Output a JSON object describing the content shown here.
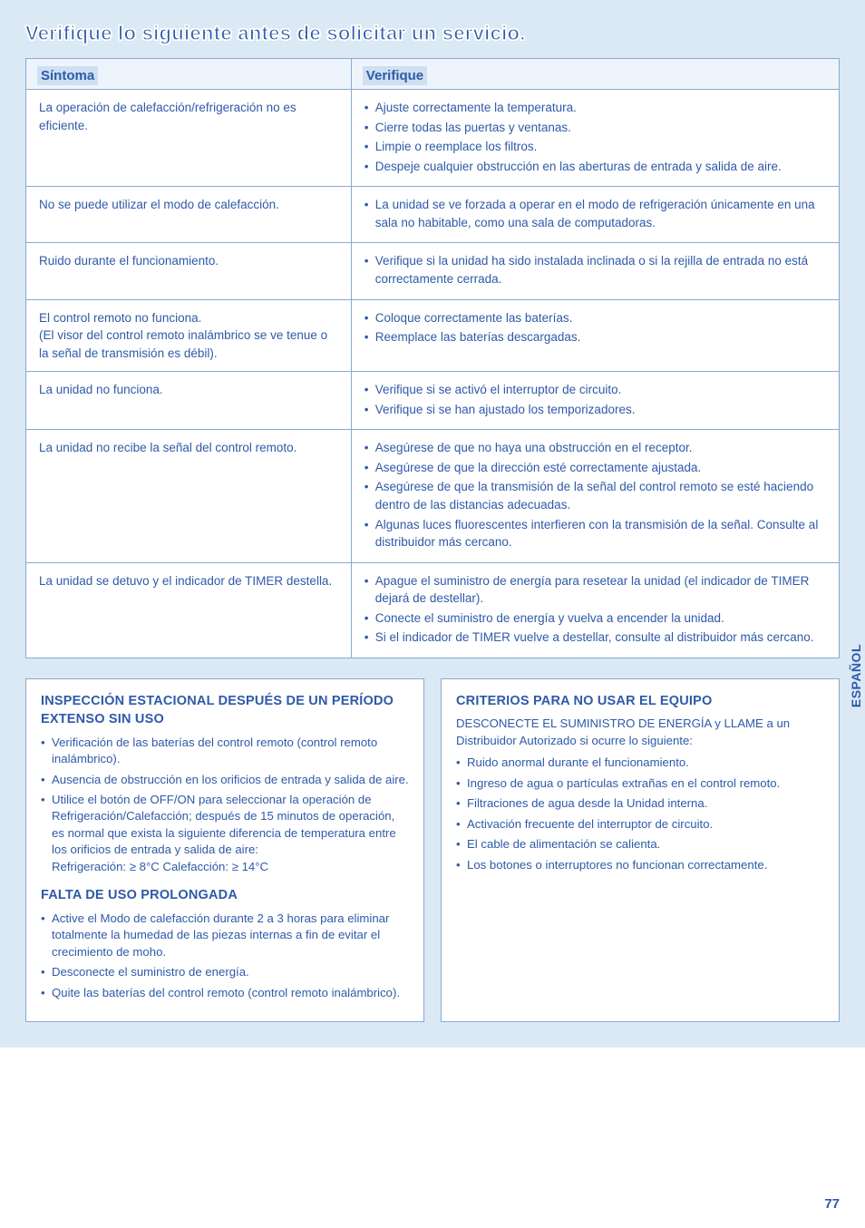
{
  "colors": {
    "page_bg": "#dbe9f4",
    "card_bg": "#ffffff",
    "border": "#8aa9d0",
    "text": "#2e5aa8",
    "header_highlight": "#cfe0f2"
  },
  "typography": {
    "title_fontsize": 22,
    "header_fontsize": 15,
    "body_fontsize": 13.5,
    "infobox_heading_fontsize": 14.5,
    "infobox_body_fontsize": 13.2,
    "pagenum_fontsize": 15
  },
  "title": "Verifique lo siguiente antes de solicitar un servicio.",
  "table": {
    "col_widths": [
      "40%",
      "60%"
    ],
    "headers": [
      "Síntoma",
      "Verifique"
    ],
    "rows": [
      {
        "symptom": "La operación de calefacción/refrigeración no es eficiente.",
        "checks": [
          "Ajuste correctamente la temperatura.",
          "Cierre todas las puertas y ventanas.",
          "Limpie o reemplace los filtros.",
          "Despeje cualquier obstrucción en las aberturas de entrada y salida de aire."
        ]
      },
      {
        "symptom": "No se puede utilizar el modo de calefacción.",
        "checks": [
          "La unidad se ve forzada a operar en el modo de refrigeración únicamente en una sala no habitable, como una sala de computadoras."
        ]
      },
      {
        "symptom": "Ruido durante el funcionamiento.",
        "checks": [
          "Verifique si la unidad ha sido instalada inclinada o si la rejilla de entrada no está correctamente cerrada."
        ]
      },
      {
        "symptom": "El control remoto no funciona.\n(El visor del control remoto inalámbrico se ve tenue o\nla señal de transmisión es débil).",
        "checks": [
          "Coloque correctamente las baterías.",
          "Reemplace las baterías descargadas."
        ]
      },
      {
        "symptom": "La unidad no funciona.",
        "checks": [
          "Verifique si se activó el interruptor de circuito.",
          "Verifique si se han ajustado los temporizadores."
        ]
      },
      {
        "symptom": "La unidad no recibe la señal del control remoto.",
        "checks": [
          "Asegúrese de que no haya una obstrucción en el receptor.",
          "Asegúrese de que la dirección esté correctamente ajustada.",
          "Asegúrese de que la transmisión de la señal del control remoto se esté haciendo dentro de las distancias adecuadas.",
          "Algunas luces fluorescentes interfieren con la transmisión de la señal. Consulte al distribuidor más cercano."
        ]
      },
      {
        "symptom": "La unidad se detuvo y el indicador de TIMER destella.",
        "checks": [
          "Apague el suministro de energía para resetear la unidad (el indicador de TIMER dejará de destellar).",
          "Conecte el suministro de energía y vuelva a encender la unidad.",
          "Si el indicador de TIMER vuelve a destellar, consulte al distribuidor más cercano."
        ]
      }
    ]
  },
  "left_box": {
    "section1": {
      "heading": "INSPECCIÓN ESTACIONAL DESPUÉS DE UN PERÍODO EXTENSO SIN USO",
      "items": [
        "Verificación de las baterías del control remoto (control remoto inalámbrico).",
        "Ausencia de obstrucción en los orificios de entrada y salida de aire.",
        "Utilice el botón de OFF/ON para seleccionar la operación de Refrigeración/Calefacción; después de 15 minutos de operación, es normal que exista la siguiente diferencia de temperatura entre los orificios de entrada y salida de aire:\nRefrigeración: ≥ 8°C        Calefacción: ≥ 14°C"
      ]
    },
    "section2": {
      "heading": "FALTA DE USO PROLONGADA",
      "items": [
        "Active el Modo de calefacción durante 2 a 3 horas para eliminar totalmente la humedad de las piezas internas a fin de evitar el crecimiento de moho.",
        "Desconecte el suministro de energía.",
        "Quite las baterías del control remoto (control remoto inalámbrico)."
      ]
    }
  },
  "right_box": {
    "heading": "CRITERIOS PARA NO USAR EL EQUIPO",
    "intro": "DESCONECTE EL SUMINISTRO DE ENERGÍA y LLAME a un Distribuidor Autorizado si ocurre lo siguiente:",
    "items": [
      "Ruido anormal durante el funcionamiento.",
      "Ingreso de agua o partículas extrañas en el control remoto.",
      "Filtraciones de agua desde la Unidad interna.",
      "Activación frecuente del interruptor de circuito.",
      "El cable de alimentación se calienta.",
      "Los botones o interruptores no funcionan correctamente."
    ]
  },
  "side_label": "ESPAÑOL",
  "page_number": "77"
}
